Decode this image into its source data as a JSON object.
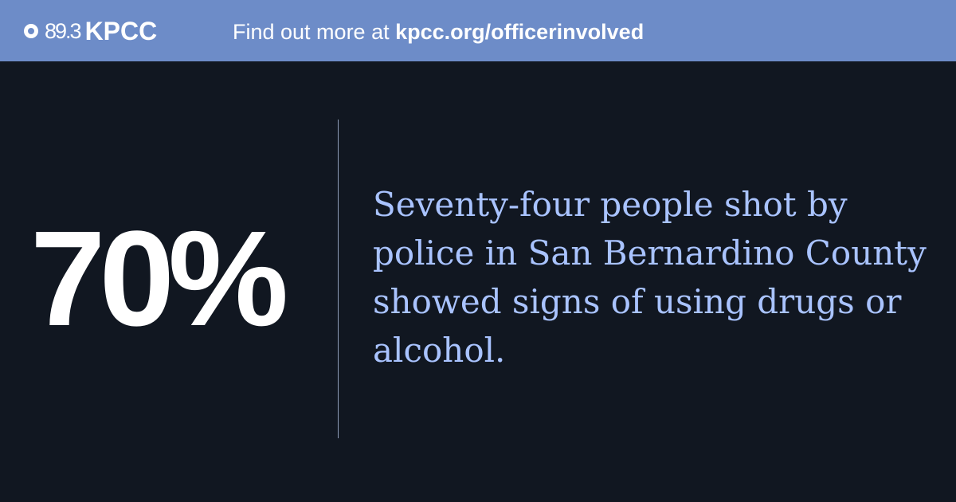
{
  "header": {
    "logo": {
      "frequency": "89.3",
      "station": "KPCC"
    },
    "cta_prefix": "Find out more at",
    "cta_url": "kpcc.org/officerinvolved"
  },
  "main": {
    "stat_value": "70%",
    "description": "Seventy-four people shot by police in San Bernardino County showed signs of using drugs or alcohol."
  },
  "colors": {
    "header_background": "#6d8cc8",
    "page_background": "#111721",
    "stat_text": "#ffffff",
    "description_text": "#a9c3ff"
  }
}
